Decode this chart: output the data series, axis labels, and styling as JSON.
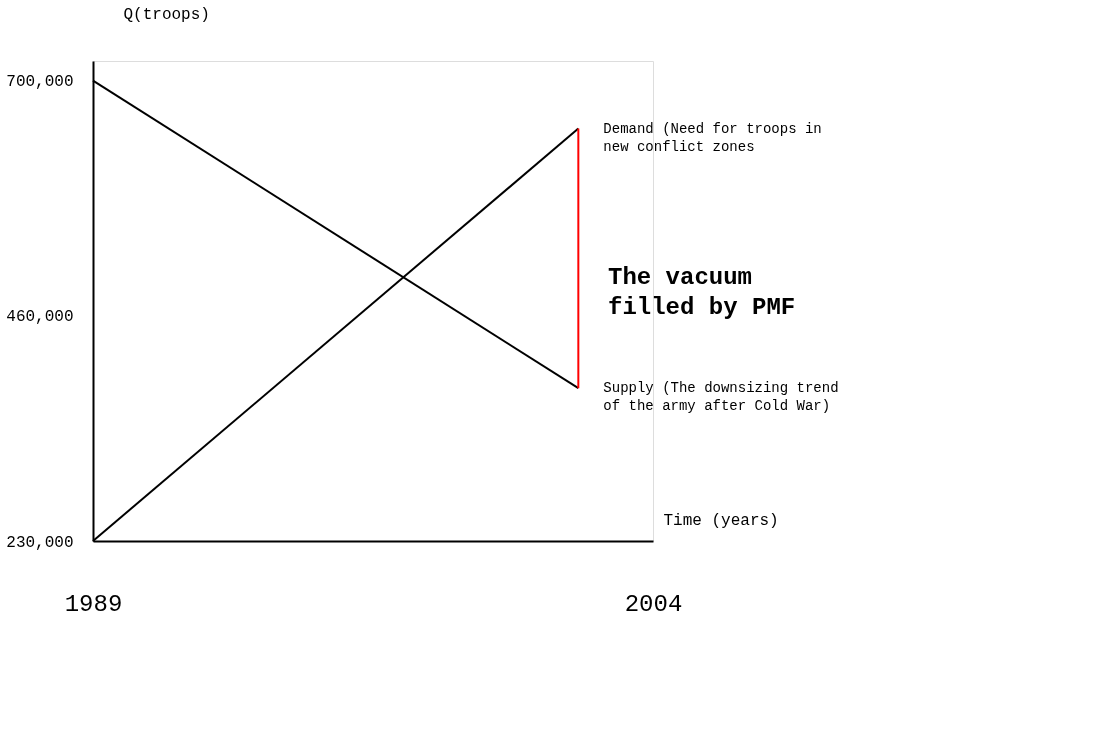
{
  "chart_data": {
    "type": "line",
    "xlabel": "Time (years)",
    "ylabel": "Q(troops)",
    "xlim": [
      1989,
      2004
    ],
    "x": [
      1989,
      2002
    ],
    "xticks": [
      1989,
      2004
    ],
    "ylim": [
      230000,
      720000
    ],
    "yticks": [
      {
        "value": 230000,
        "label": "230,000"
      },
      {
        "value": 460000,
        "label": "460,000"
      },
      {
        "value": 700000,
        "label": "700,000"
      }
    ],
    "series": [
      {
        "name": "Demand (Need for troops in new conflict zones",
        "color": "#000000",
        "values": [
          230000,
          651000
        ]
      },
      {
        "name": "Supply (The downsizing trend of the army after Cold War)",
        "color": "#000000",
        "values": [
          700000,
          386000
        ]
      },
      {
        "color": "#ff0000",
        "x": [
          2002,
          2002
        ],
        "values": [
          386000,
          651000
        ]
      }
    ],
    "annotations": [
      "The vacuum filled by PMF"
    ],
    "grid": false,
    "marker": "none",
    "line_style": "solid"
  }
}
